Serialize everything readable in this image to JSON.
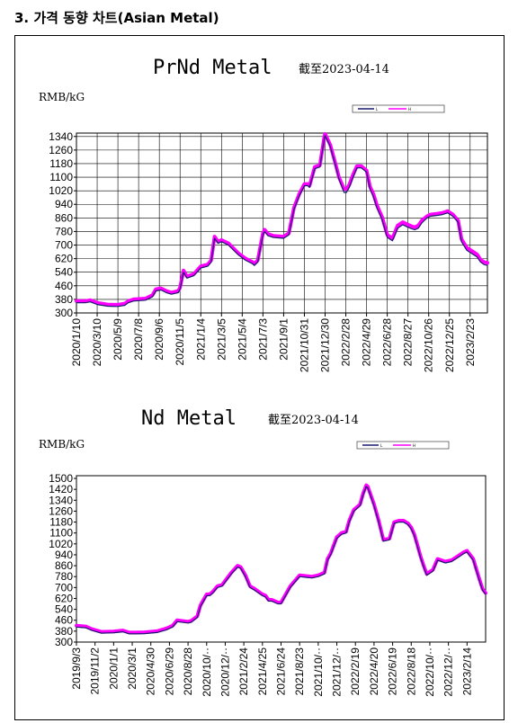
{
  "heading": "3. 가격 동향 차트(Asian Metal)",
  "colors": {
    "low": "#1a1a6e",
    "high": "#ff00ff",
    "axis": "#000000"
  },
  "chart_data": [
    {
      "type": "line",
      "title": "PrNd Metal",
      "subtitle": "截至2023-04-14",
      "ylabel": "RMB/kG",
      "xlabel": "",
      "ylim": [
        300,
        1360
      ],
      "yticks": [
        300,
        380,
        460,
        540,
        620,
        700,
        780,
        860,
        940,
        1020,
        1100,
        1180,
        1260,
        1340
      ],
      "xlim": [
        0,
        1190
      ],
      "xtick_labels": [
        "2020/1/10",
        "2020/3/10",
        "2020/5/9",
        "2020/7/8",
        "2020/9/6",
        "2020/11/5",
        "2021/1/4",
        "2021/3/5",
        "2021/5/4",
        "2021/7/3",
        "2021/9/1",
        "2021/10/31",
        "2021/12/30",
        "2022/2/28",
        "2022/4/29",
        "2022/6/28",
        "2022/8/27",
        "2022/10/26",
        "2022/12/25",
        "2023/2/23"
      ],
      "xtick_pos": [
        0,
        60,
        120,
        180,
        240,
        300,
        360,
        420,
        480,
        540,
        600,
        660,
        720,
        780,
        840,
        900,
        960,
        1020,
        1080,
        1140
      ],
      "grid": true,
      "legend": {
        "position": "top-right",
        "entries": [
          "L",
          "H"
        ]
      },
      "series": [
        {
          "name": "L",
          "x": [
            0,
            25,
            40,
            60,
            90,
            120,
            140,
            150,
            165,
            200,
            220,
            230,
            245,
            260,
            275,
            295,
            300,
            310,
            320,
            340,
            360,
            380,
            390,
            400,
            410,
            420,
            440,
            470,
            490,
            510,
            515,
            525,
            540,
            545,
            555,
            570,
            600,
            615,
            630,
            645,
            660,
            670,
            675,
            690,
            705,
            718,
            720,
            735,
            750,
            760,
            775,
            782,
            790,
            800,
            812,
            825,
            840,
            850,
            860,
            870,
            885,
            900,
            915,
            930,
            945,
            960,
            972,
            980,
            990,
            1000,
            1015,
            1025,
            1045,
            1060,
            1075,
            1090,
            1105,
            1115,
            1130,
            1145,
            1160,
            1170,
            1180,
            1190
          ],
          "y": [
            360,
            360,
            365,
            350,
            340,
            338,
            345,
            360,
            370,
            375,
            395,
            430,
            435,
            420,
            410,
            420,
            440,
            540,
            505,
            520,
            565,
            575,
            600,
            740,
            710,
            720,
            700,
            640,
            610,
            590,
            580,
            600,
            760,
            780,
            755,
            745,
            740,
            760,
            910,
            990,
            1050,
            1050,
            1040,
            1150,
            1160,
            1330,
            1345,
            1280,
            1170,
            1090,
            1010,
            1010,
            1040,
            1095,
            1155,
            1155,
            1130,
            1030,
            985,
            920,
            850,
            745,
            725,
            800,
            820,
            805,
            795,
            790,
            800,
            830,
            860,
            870,
            875,
            880,
            890,
            870,
            835,
            720,
            670,
            650,
            630,
            600,
            585,
            580
          ]
        },
        {
          "name": "H",
          "x": [
            0,
            25,
            40,
            60,
            90,
            120,
            140,
            150,
            165,
            200,
            220,
            230,
            245,
            260,
            275,
            295,
            300,
            310,
            320,
            340,
            360,
            380,
            390,
            400,
            410,
            420,
            440,
            470,
            490,
            510,
            515,
            525,
            540,
            545,
            555,
            570,
            600,
            615,
            630,
            645,
            660,
            670,
            675,
            690,
            705,
            718,
            720,
            735,
            750,
            760,
            775,
            782,
            790,
            800,
            812,
            825,
            840,
            850,
            860,
            870,
            885,
            900,
            915,
            930,
            945,
            960,
            972,
            980,
            990,
            1000,
            1015,
            1025,
            1045,
            1060,
            1075,
            1090,
            1105,
            1115,
            1130,
            1145,
            1160,
            1170,
            1180,
            1190
          ],
          "y": [
            370,
            370,
            375,
            360,
            350,
            348,
            355,
            370,
            380,
            385,
            405,
            440,
            445,
            430,
            420,
            430,
            450,
            550,
            515,
            530,
            575,
            585,
            610,
            750,
            720,
            730,
            710,
            650,
            620,
            600,
            590,
            610,
            770,
            790,
            765,
            755,
            750,
            770,
            920,
            1000,
            1060,
            1060,
            1050,
            1160,
            1170,
            1340,
            1355,
            1290,
            1180,
            1100,
            1030,
            1030,
            1055,
            1110,
            1165,
            1165,
            1140,
            1045,
            1000,
            935,
            865,
            760,
            740,
            815,
            835,
            820,
            810,
            805,
            815,
            845,
            870,
            880,
            885,
            890,
            900,
            880,
            845,
            735,
            685,
            665,
            645,
            615,
            600,
            595
          ]
        }
      ]
    },
    {
      "type": "line",
      "title": "Nd Metal",
      "subtitle": "截至2023-04-14",
      "ylabel": "RMB/kG",
      "xlabel": "",
      "ylim": [
        300,
        1520
      ],
      "yticks": [
        300,
        380,
        460,
        540,
        620,
        700,
        780,
        860,
        940,
        1020,
        1100,
        1180,
        1260,
        1340,
        1420,
        1500
      ],
      "xlim": [
        0,
        1320
      ],
      "xtick_labels": [
        "2019/9/3",
        "2019/11/2",
        "2020/1/1",
        "2020/3/1",
        "2020/4/30",
        "2020/6/29",
        "2020/8/28",
        "2020/10/··",
        "2020/12/··",
        "2021/2/24",
        "2021/4/25",
        "2021/6/24",
        "2021/8/23",
        "2021/10/··",
        "2021/12/··",
        "2022/2/19",
        "2022/4/20",
        "2022/6/19",
        "2022/8/18",
        "2022/10/··",
        "2022/12/··",
        "2023/2/14"
      ],
      "xtick_pos": [
        0,
        60,
        120,
        180,
        240,
        300,
        360,
        420,
        480,
        540,
        600,
        660,
        720,
        780,
        840,
        900,
        960,
        1020,
        1080,
        1140,
        1200,
        1260
      ],
      "grid": false,
      "legend": {
        "position": "top-right",
        "entries": [
          "L",
          "H"
        ]
      },
      "series": [
        {
          "name": "L",
          "x": [
            0,
            30,
            50,
            80,
            120,
            150,
            170,
            190,
            220,
            260,
            290,
            310,
            325,
            360,
            370,
            390,
            400,
            420,
            430,
            440,
            455,
            470,
            500,
            520,
            530,
            545,
            560,
            575,
            600,
            610,
            620,
            630,
            650,
            660,
            670,
            690,
            720,
            740,
            760,
            780,
            800,
            810,
            820,
            840,
            855,
            870,
            880,
            895,
            905,
            915,
            925,
            935,
            940,
            960,
            975,
            990,
            1010,
            1025,
            1040,
            1055,
            1070,
            1080,
            1090,
            1100,
            1110,
            1120,
            1130,
            1150,
            1165,
            1190,
            1210,
            1230,
            1250,
            1260,
            1280,
            1300,
            1310,
            1320
          ],
          "y": [
            410,
            405,
            385,
            365,
            368,
            375,
            360,
            360,
            362,
            370,
            390,
            410,
            450,
            440,
            445,
            480,
            560,
            640,
            640,
            660,
            700,
            710,
            800,
            850,
            840,
            780,
            700,
            680,
            640,
            630,
            600,
            600,
            580,
            580,
            620,
            700,
            780,
            775,
            770,
            780,
            800,
            900,
            940,
            1060,
            1090,
            1100,
            1180,
            1260,
            1280,
            1300,
            1380,
            1440,
            1430,
            1300,
            1180,
            1040,
            1050,
            1170,
            1180,
            1180,
            1160,
            1130,
            1080,
            1000,
            920,
            850,
            790,
            820,
            900,
            880,
            890,
            920,
            950,
            960,
            900,
            750,
            680,
            650
          ]
        },
        {
          "name": "H",
          "x": [
            0,
            30,
            50,
            80,
            120,
            150,
            170,
            190,
            220,
            260,
            290,
            310,
            325,
            360,
            370,
            390,
            400,
            420,
            430,
            440,
            455,
            470,
            500,
            520,
            530,
            545,
            560,
            575,
            600,
            610,
            620,
            630,
            650,
            660,
            670,
            690,
            720,
            740,
            760,
            780,
            800,
            810,
            820,
            840,
            855,
            870,
            880,
            895,
            905,
            915,
            925,
            935,
            940,
            960,
            975,
            990,
            1010,
            1025,
            1040,
            1055,
            1070,
            1080,
            1090,
            1100,
            1110,
            1120,
            1130,
            1150,
            1165,
            1190,
            1210,
            1230,
            1250,
            1260,
            1280,
            1300,
            1310,
            1320
          ],
          "y": [
            420,
            415,
            395,
            375,
            378,
            385,
            370,
            370,
            372,
            380,
            400,
            420,
            460,
            450,
            455,
            490,
            570,
            650,
            650,
            670,
            710,
            720,
            810,
            860,
            850,
            790,
            710,
            690,
            650,
            640,
            610,
            610,
            590,
            590,
            630,
            710,
            790,
            785,
            780,
            790,
            810,
            910,
            950,
            1070,
            1100,
            1110,
            1190,
            1270,
            1290,
            1310,
            1390,
            1450,
            1440,
            1310,
            1190,
            1050,
            1060,
            1180,
            1190,
            1190,
            1170,
            1140,
            1090,
            1010,
            930,
            860,
            800,
            830,
            910,
            890,
            900,
            930,
            960,
            970,
            910,
            760,
            690,
            660
          ]
        }
      ]
    }
  ]
}
